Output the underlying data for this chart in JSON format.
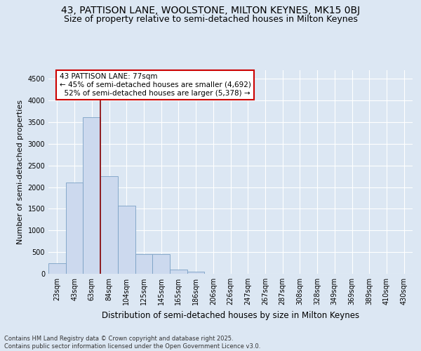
{
  "title_line1": "43, PATTISON LANE, WOOLSTONE, MILTON KEYNES, MK15 0BJ",
  "title_line2": "Size of property relative to semi-detached houses in Milton Keynes",
  "xlabel": "Distribution of semi-detached houses by size in Milton Keynes",
  "ylabel": "Number of semi-detached properties",
  "footer": "Contains HM Land Registry data © Crown copyright and database right 2025.\nContains public sector information licensed under the Open Government Licence v3.0.",
  "bar_color": "#ccd9ee",
  "bar_edge_color": "#7aa0c4",
  "categories": [
    "23sqm",
    "43sqm",
    "63sqm",
    "84sqm",
    "104sqm",
    "125sqm",
    "145sqm",
    "165sqm",
    "186sqm",
    "206sqm",
    "226sqm",
    "247sqm",
    "267sqm",
    "287sqm",
    "308sqm",
    "328sqm",
    "349sqm",
    "369sqm",
    "389sqm",
    "410sqm",
    "430sqm"
  ],
  "values": [
    250,
    2100,
    3620,
    2250,
    1580,
    460,
    450,
    105,
    55,
    0,
    0,
    0,
    0,
    0,
    0,
    0,
    0,
    0,
    0,
    0,
    0
  ],
  "ylim": [
    0,
    4700
  ],
  "yticks": [
    0,
    500,
    1000,
    1500,
    2000,
    2500,
    3000,
    3500,
    4000,
    4500
  ],
  "property_label": "43 PATTISON LANE: 77sqm",
  "pct_smaller": 45,
  "count_smaller": 4692,
  "pct_larger": 52,
  "count_larger": 5378,
  "vline_x_index": 2.5,
  "bg_color": "#dce7f3",
  "grid_color": "#ffffff",
  "title_fontsize": 10,
  "subtitle_fontsize": 9,
  "tick_fontsize": 7,
  "ylabel_fontsize": 8,
  "xlabel_fontsize": 8.5,
  "footer_fontsize": 6,
  "annot_fontsize": 7.5
}
